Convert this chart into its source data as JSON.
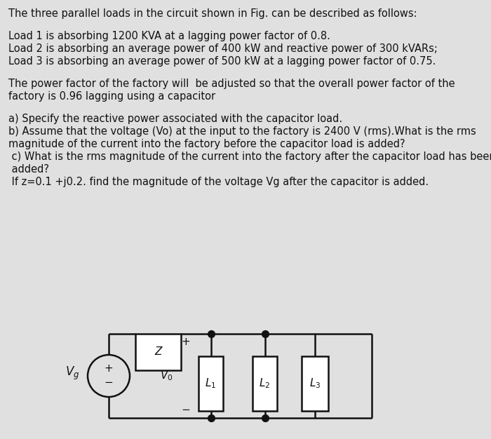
{
  "bg_color": "#e0e0e0",
  "text_color": "#111111",
  "line1": "The three parallel loads in the circuit shown in Fig. can be described as follows:",
  "load1": "Load 1 is absorbing 1200 KVA at a lagging power factor of 0.8.",
  "load2": "Load 2 is absorbing an average power of 400 kW and reactive power of 300 kVARs;",
  "load3": "Load 3 is absorbing an average power of 500 kW at a lagging power factor of 0.75.",
  "para1a": "The power factor of the factory will  be adjusted so that the overall power factor of the",
  "para1b": "factory is 0.96 lagging using a capacitor",
  "qa": "a) Specify the reactive power associated with the capacitor load.",
  "qb1": "b) Assume that the voltage (Vo) at the input to the factory is 2400 V (rms).What is the rms",
  "qb2": "magnitude of the current into the factory before the capacitor load is added?",
  "qc1": " c) What is the rms magnitude of the current into the factory after the capacitor load has been",
  "qc2": " added?",
  "qd": " If z=0.1 +j0.2. find the magnitude of the voltage Vg after the capacitor is added.",
  "fontsize": 10.5
}
